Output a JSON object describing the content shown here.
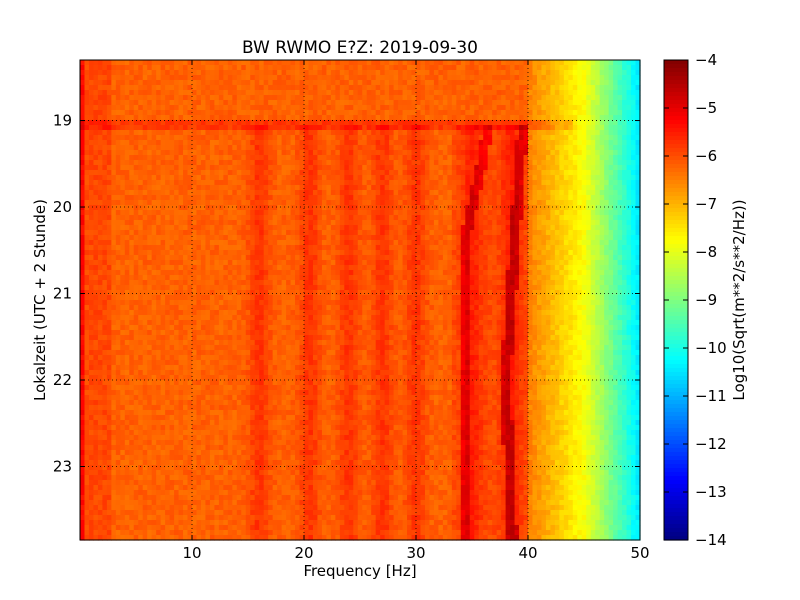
{
  "chart_data": {
    "type": "heatmap",
    "title": "BW RWMO E?Z: 2019-09-30",
    "xlabel": "Frequency [Hz]",
    "ylabel": "Lokalzeit (UTC + 2 Stunde)",
    "xlim": [
      0,
      50
    ],
    "ylim_hours": [
      18.3,
      23.85
    ],
    "y_inverted": true,
    "x_ticks": [
      10,
      20,
      30,
      40,
      50
    ],
    "y_ticks": [
      19,
      20,
      21,
      22,
      23
    ],
    "grid": true,
    "grid_style": "dotted",
    "colormap": "jet",
    "colorbar": {
      "label": "Log10(Sqrt(m**2/s**2/Hz))",
      "range": [
        -14,
        -4
      ],
      "ticks": [
        -4,
        -5,
        -6,
        -7,
        -8,
        -9,
        -10,
        -11,
        -12,
        -13,
        -14
      ]
    },
    "data_description": {
      "typical_level_low_freq": -6.2,
      "level_at_40hz": -6.5,
      "level_at_45hz": -7.8,
      "level_at_50hz": -10.5,
      "data_change_hour": 19.05,
      "line_34hz": {
        "hour_start": 19.1,
        "freq_start": 36.5,
        "freq_end": 34.5
      },
      "line_38hz": {
        "hour_start": 19.1,
        "freq_start": 39.5,
        "freq_min": 38.0,
        "freq_end": 38.6
      },
      "band_features_hz": [
        16,
        20.5,
        24,
        27,
        30,
        35,
        38.5
      ]
    }
  }
}
